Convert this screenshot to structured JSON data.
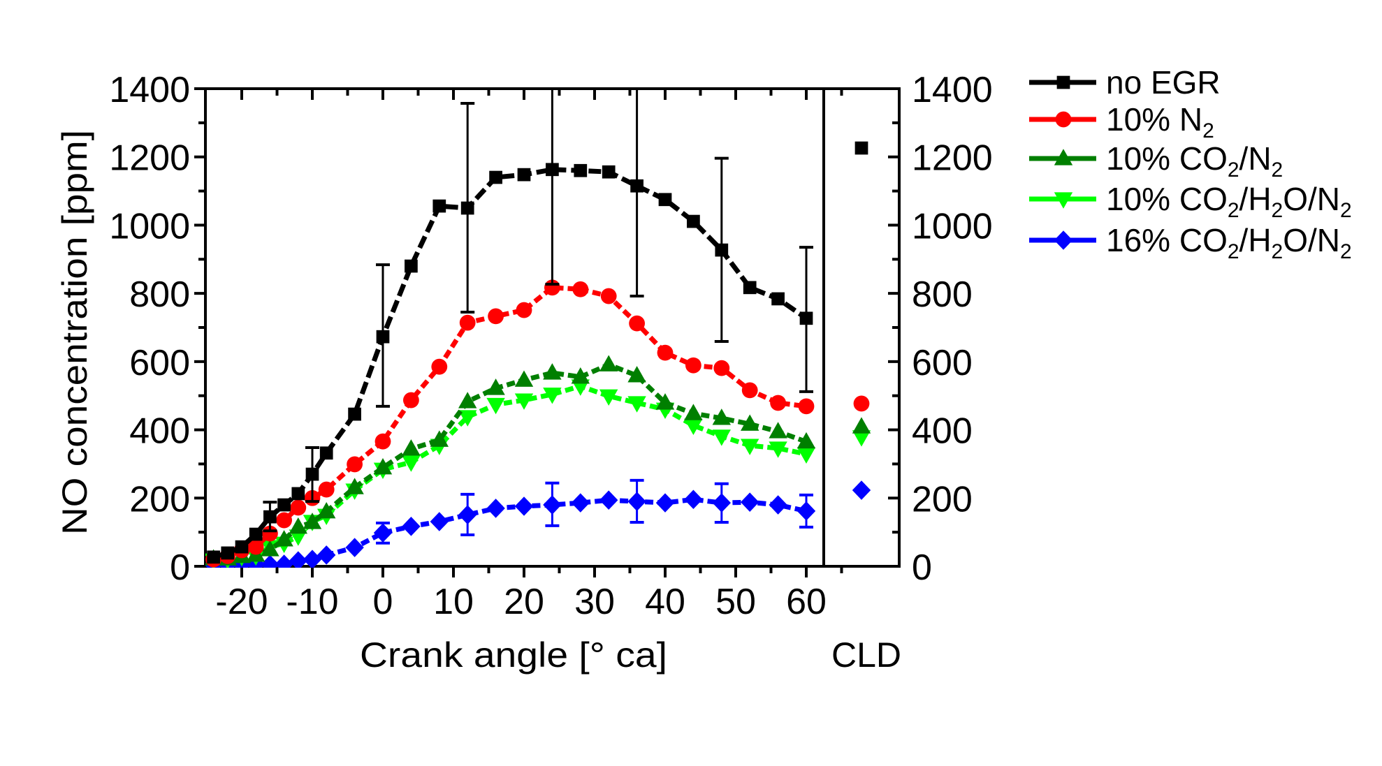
{
  "chart_data": {
    "type": "line",
    "title": "",
    "xlabel": "Crank angle [° ca]",
    "ylabel": "NO concentration [ppm]",
    "secondary_panel_label": "CLD",
    "xlim": [
      -25,
      62.4
    ],
    "ylim": [
      0,
      1400
    ],
    "x_ticks": [
      -20,
      -10,
      0,
      10,
      20,
      30,
      40,
      50,
      60
    ],
    "x_tick_labels": [
      "-20",
      "-10",
      "0",
      "10",
      "20",
      "30",
      "40",
      "50",
      "60"
    ],
    "y_ticks": [
      0,
      200,
      400,
      600,
      800,
      1000,
      1200,
      1400
    ],
    "y_tick_labels": [
      "0",
      "200",
      "400",
      "600",
      "800",
      "1000",
      "1200",
      "1400"
    ],
    "right_y_tick_labels": [
      "0",
      "200",
      "400",
      "600",
      "800",
      "1000",
      "1200",
      "1400"
    ],
    "grid": false,
    "legend_position": "right",
    "x": [
      -24,
      -22,
      -20,
      -18,
      -16,
      -14,
      -12,
      -10,
      -8,
      -4,
      0,
      4,
      8,
      12,
      16,
      20,
      24,
      28,
      32,
      36,
      40,
      44,
      48,
      52,
      56,
      60
    ],
    "series": [
      {
        "name": "no EGR",
        "legend_parts": [
          {
            "t": "no EGR",
            "sub": false
          }
        ],
        "color": "#000000",
        "marker": "square",
        "values": [
          27,
          39,
          57,
          94,
          145,
          180,
          213,
          270,
          332,
          446,
          673,
          880,
          1056,
          1050,
          1140,
          1148,
          1163,
          1160,
          1156,
          1115,
          1075,
          1011,
          927,
          817,
          784,
          727
        ],
        "error_bars": [
          {
            "x": -16,
            "low": 104,
            "high": 188
          },
          {
            "x": -10,
            "low": 190,
            "high": 348
          },
          {
            "x": 0,
            "low": 469,
            "high": 884
          },
          {
            "x": 12,
            "low": 745,
            "high": 1357
          },
          {
            "x": 24,
            "low": 827,
            "high": 1420
          },
          {
            "x": 36,
            "low": 792,
            "high": 1420
          },
          {
            "x": 48,
            "low": 659,
            "high": 1196
          },
          {
            "x": 60,
            "low": 512,
            "high": 935
          }
        ],
        "cld": 1226
      },
      {
        "name": "10% N2",
        "legend_parts": [
          {
            "t": "10% N",
            "sub": false
          },
          {
            "t": "2",
            "sub": true
          }
        ],
        "color": "#ff0000",
        "marker": "circle",
        "values": [
          20,
          30,
          47,
          57,
          96,
          135,
          172,
          200,
          225,
          299,
          366,
          487,
          585,
          714,
          733,
          751,
          817,
          812,
          792,
          712,
          626,
          589,
          581,
          516,
          479,
          469
        ],
        "error_bars": [],
        "cld": 477
      },
      {
        "name": "10% CO2/N2",
        "legend_parts": [
          {
            "t": "10% CO",
            "sub": false
          },
          {
            "t": "2",
            "sub": true
          },
          {
            "t": "/N",
            "sub": false
          },
          {
            "t": "2",
            "sub": true
          }
        ],
        "color": "#007f00",
        "marker": "triangle-up",
        "values": [
          22,
          22,
          29,
          33,
          49,
          78,
          115,
          129,
          160,
          231,
          289,
          344,
          370,
          483,
          522,
          546,
          567,
          555,
          591,
          559,
          479,
          448,
          434,
          417,
          395,
          365
        ],
        "error_bars": [],
        "cld": 409
      },
      {
        "name": "10% CO2/H2O/N2",
        "legend_parts": [
          {
            "t": "10% CO",
            "sub": false
          },
          {
            "t": "2",
            "sub": true
          },
          {
            "t": "/H",
            "sub": false
          },
          {
            "t": "2",
            "sub": true
          },
          {
            "t": "O/N",
            "sub": false
          },
          {
            "t": "2",
            "sub": true
          }
        ],
        "color": "#00ff00",
        "marker": "triangle-down",
        "values": [
          18,
          20,
          28,
          30,
          57,
          67,
          88,
          131,
          149,
          223,
          284,
          305,
          354,
          438,
          474,
          487,
          504,
          528,
          499,
          479,
          460,
          413,
          381,
          354,
          346,
          329
        ],
        "error_bars": [],
        "cld": 379
      },
      {
        "name": "16% CO2/H2O/N2",
        "legend_parts": [
          {
            "t": "16% CO",
            "sub": false
          },
          {
            "t": "2",
            "sub": true
          },
          {
            "t": "/H",
            "sub": false
          },
          {
            "t": "2",
            "sub": true
          },
          {
            "t": "O/N",
            "sub": false
          },
          {
            "t": "2",
            "sub": true
          }
        ],
        "color": "#0000ff",
        "marker": "diamond",
        "values": [
          5,
          5,
          5,
          5,
          5,
          6,
          16,
          20,
          33,
          55,
          98,
          117,
          131,
          151,
          170,
          176,
          180,
          186,
          194,
          190,
          186,
          196,
          186,
          188,
          180,
          162
        ],
        "error_bars": [
          {
            "x": 0,
            "low": 68,
            "high": 127
          },
          {
            "x": 12,
            "low": 92,
            "high": 211
          },
          {
            "x": 24,
            "low": 119,
            "high": 244
          },
          {
            "x": 36,
            "low": 129,
            "high": 252
          },
          {
            "x": 48,
            "low": 129,
            "high": 242
          },
          {
            "x": 60,
            "low": 115,
            "high": 209
          }
        ],
        "cld": 223
      }
    ]
  }
}
